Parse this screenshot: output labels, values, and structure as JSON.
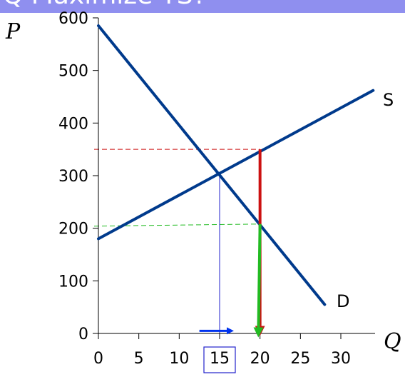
{
  "title": "Q Maximize TS?",
  "chart_data": {
    "type": "line",
    "xlabel": "Q",
    "ylabel": "P",
    "xlim": [
      0,
      34
    ],
    "ylim": [
      0,
      600
    ],
    "x_ticks": [
      0,
      5,
      10,
      15,
      20,
      25,
      30
    ],
    "y_ticks": [
      0,
      100,
      200,
      300,
      400,
      500,
      600
    ],
    "series": [
      {
        "name": "S",
        "x": [
          0,
          34
        ],
        "y": [
          180,
          462
        ],
        "color": "#003a8c"
      },
      {
        "name": "D",
        "x": [
          0,
          28
        ],
        "y": [
          585,
          55
        ],
        "color": "#003a8c"
      }
    ],
    "annotations": {
      "equilibrium": {
        "q": 15,
        "p": 305,
        "color": "#2222cc"
      },
      "price_supply_at_20": {
        "q": 20,
        "p": 350,
        "color": "#cc1111"
      },
      "price_demand_at_20": {
        "q": 20,
        "p": 208,
        "color": "#22bb22"
      },
      "quantity_shift": {
        "from": 12.5,
        "to": 16.5,
        "y": 5,
        "color": "#0033ee"
      },
      "arrow_supply_down": {
        "q": 20,
        "from": 350,
        "to": 5,
        "color": "#cc1111"
      },
      "arrow_demand_down": {
        "q": 19.8,
        "from": 208,
        "to": 2,
        "color": "#22bb22"
      },
      "highlighted_tick": 15
    }
  }
}
